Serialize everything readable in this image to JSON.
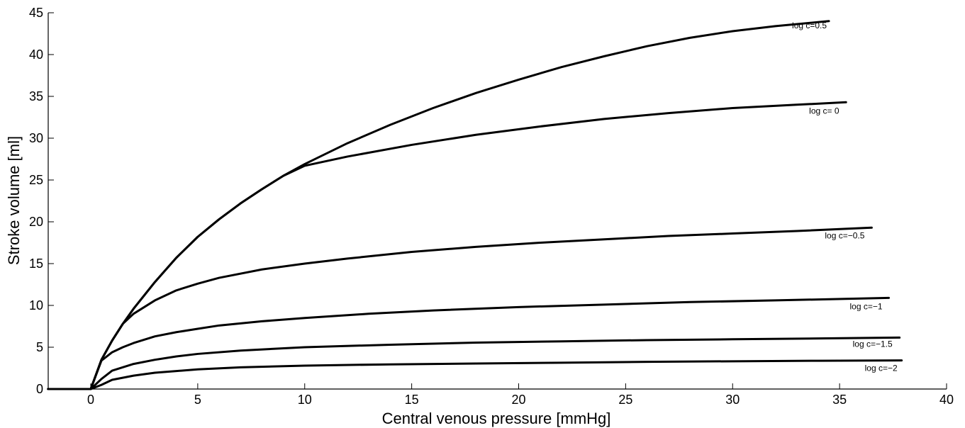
{
  "chart_data": {
    "type": "line",
    "title": "",
    "xlabel": "Central venous pressure [mmHg]",
    "ylabel": "Stroke volume [ml]",
    "xlim": [
      -2,
      40
    ],
    "ylim": [
      0,
      45
    ],
    "xticks": [
      0,
      5,
      10,
      15,
      20,
      25,
      30,
      35,
      40
    ],
    "yticks": [
      0,
      5,
      10,
      15,
      20,
      25,
      30,
      35,
      40,
      45
    ],
    "grid": false,
    "lead_in": [
      [
        -2,
        0
      ],
      [
        0,
        0
      ]
    ],
    "series": [
      {
        "name": "log c=0.5",
        "x": [
          0,
          0.5,
          1,
          1.5,
          2,
          3,
          4,
          5,
          6,
          7,
          8,
          9,
          10,
          12,
          14,
          16,
          18,
          20,
          22,
          24,
          26,
          28,
          30,
          32,
          34.5
        ],
        "y": [
          0,
          3.5,
          5.8,
          7.8,
          9.6,
          12.8,
          15.7,
          18.2,
          20.3,
          22.2,
          23.9,
          25.5,
          26.9,
          29.4,
          31.6,
          33.6,
          35.4,
          37.0,
          38.5,
          39.8,
          41.0,
          42.0,
          42.8,
          43.4,
          44.0
        ]
      },
      {
        "name": "log c= 0",
        "x": [
          0,
          0.5,
          1,
          1.5,
          2,
          3,
          4,
          5,
          6,
          7,
          8,
          9,
          10,
          12,
          15,
          18,
          21,
          24,
          27,
          30,
          33,
          35.3
        ],
        "y": [
          0,
          3.5,
          5.8,
          7.8,
          9.6,
          12.8,
          15.7,
          18.2,
          20.3,
          22.2,
          23.9,
          25.5,
          26.7,
          27.8,
          29.2,
          30.4,
          31.4,
          32.3,
          33.0,
          33.6,
          34.0,
          34.3
        ]
      },
      {
        "name": "log c=−0.5",
        "x": [
          0,
          0.5,
          1,
          1.5,
          2,
          3,
          4,
          5,
          6,
          8,
          10,
          12,
          15,
          18,
          21,
          24,
          27,
          30,
          33,
          36.5
        ],
        "y": [
          0,
          3.5,
          5.8,
          7.8,
          9.0,
          10.6,
          11.8,
          12.6,
          13.3,
          14.3,
          15.0,
          15.6,
          16.4,
          17.0,
          17.5,
          17.9,
          18.3,
          18.6,
          18.9,
          19.3
        ]
      },
      {
        "name": "log c=−1",
        "x": [
          0,
          0.5,
          1,
          1.5,
          2,
          3,
          4,
          5,
          6,
          8,
          10,
          13,
          16,
          20,
          24,
          28,
          32,
          37.3
        ],
        "y": [
          0,
          3.4,
          4.4,
          5.0,
          5.5,
          6.3,
          6.8,
          7.2,
          7.6,
          8.1,
          8.5,
          9.0,
          9.4,
          9.8,
          10.1,
          10.4,
          10.6,
          10.9
        ]
      },
      {
        "name": "log c=−1.5",
        "x": [
          0,
          0.5,
          1,
          2,
          3,
          4,
          5,
          7,
          10,
          14,
          18,
          22,
          26,
          30,
          34,
          37.8
        ],
        "y": [
          0,
          1.2,
          2.2,
          3.0,
          3.5,
          3.9,
          4.2,
          4.6,
          5.0,
          5.3,
          5.55,
          5.7,
          5.85,
          5.95,
          6.05,
          6.15
        ]
      },
      {
        "name": "log c=−2",
        "x": [
          0,
          0.5,
          1,
          2,
          3,
          4,
          5,
          7,
          10,
          14,
          18,
          22,
          26,
          30,
          34,
          37.9
        ],
        "y": [
          0,
          0.5,
          1.1,
          1.6,
          1.95,
          2.15,
          2.35,
          2.6,
          2.8,
          2.95,
          3.05,
          3.15,
          3.25,
          3.32,
          3.38,
          3.42
        ]
      }
    ]
  }
}
